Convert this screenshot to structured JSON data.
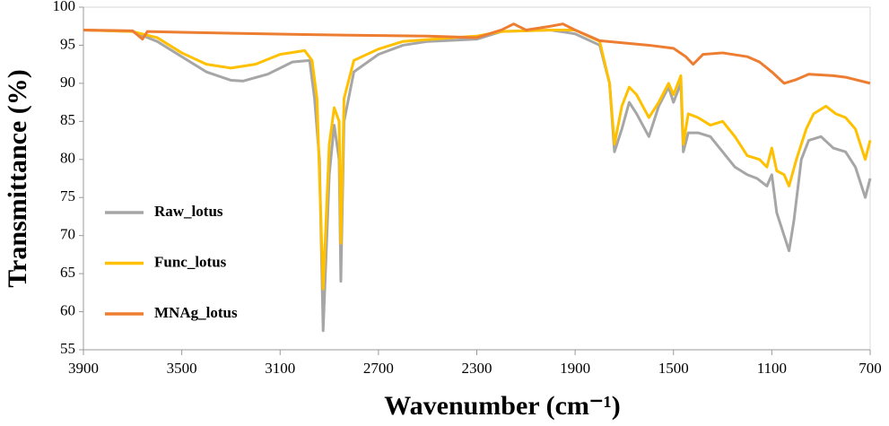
{
  "chart_data": {
    "type": "line",
    "x_label": "Wavenumber (cm⁻¹)",
    "y_label": "Transmittance (%)",
    "xlim": [
      3900,
      700
    ],
    "xticks": [
      3900,
      3500,
      3100,
      2700,
      2300,
      1900,
      1500,
      1100,
      700
    ],
    "ylim": [
      55,
      100
    ],
    "yticks": [
      55,
      60,
      65,
      70,
      75,
      80,
      85,
      90,
      95,
      100
    ],
    "legend": "left",
    "series": [
      {
        "name": "Raw_lotus",
        "color": "#a6a6a6",
        "x": [
          3900,
          3700,
          3600,
          3500,
          3400,
          3300,
          3250,
          3150,
          3050,
          2980,
          2960,
          2940,
          2925,
          2900,
          2880,
          2860,
          2853,
          2840,
          2800,
          2700,
          2600,
          2500,
          2300,
          2200,
          2000,
          1900,
          1800,
          1760,
          1740,
          1710,
          1680,
          1650,
          1600,
          1560,
          1520,
          1500,
          1470,
          1460,
          1440,
          1400,
          1350,
          1300,
          1250,
          1200,
          1160,
          1120,
          1100,
          1080,
          1050,
          1030,
          1010,
          980,
          950,
          900,
          850,
          800,
          760,
          720,
          700
        ],
        "values": [
          97,
          96.8,
          95.5,
          93.5,
          91.5,
          90.4,
          90.3,
          91.2,
          92.8,
          93,
          88,
          80,
          57.5,
          78,
          84.5,
          80,
          64,
          85,
          91.5,
          93.8,
          95,
          95.5,
          95.8,
          96.8,
          97,
          96.5,
          95,
          90,
          81,
          84,
          87.5,
          86,
          83,
          87,
          89.5,
          87.5,
          90,
          81,
          83.5,
          83.5,
          83,
          81,
          79,
          78,
          77.5,
          76.5,
          78,
          73,
          70,
          68,
          72,
          80,
          82.5,
          83,
          81.5,
          81,
          79,
          75,
          77.5
        ]
      },
      {
        "name": "Func_lotus",
        "color": "#ffc000",
        "x": [
          3900,
          3700,
          3600,
          3500,
          3400,
          3300,
          3200,
          3100,
          3000,
          2970,
          2950,
          2925,
          2900,
          2880,
          2860,
          2853,
          2840,
          2800,
          2700,
          2600,
          2400,
          2300,
          2200,
          2000,
          1900,
          1800,
          1760,
          1740,
          1710,
          1680,
          1650,
          1600,
          1560,
          1520,
          1500,
          1470,
          1460,
          1440,
          1400,
          1350,
          1300,
          1250,
          1200,
          1150,
          1120,
          1100,
          1080,
          1050,
          1030,
          1000,
          960,
          930,
          880,
          840,
          800,
          760,
          720,
          700
        ],
        "values": [
          97,
          96.8,
          96,
          94,
          92.5,
          92,
          92.5,
          93.8,
          94.3,
          93,
          88,
          63,
          82,
          86.8,
          85,
          69,
          88,
          93,
          94.5,
          95.5,
          96,
          96.2,
          96.8,
          97,
          97,
          95.5,
          90,
          82,
          87,
          89.5,
          88.5,
          85.5,
          87.5,
          90,
          88.5,
          91,
          82,
          86,
          85.5,
          84.5,
          85,
          83,
          80.5,
          80,
          79,
          81.5,
          78.5,
          78,
          76.5,
          80,
          84,
          86,
          87,
          86,
          85.5,
          84,
          80,
          82.5
        ]
      },
      {
        "name": "MNAg_lotus",
        "color": "#ed7d31",
        "x": [
          3900,
          3700,
          3660,
          3640,
          3500,
          3000,
          2500,
          2300,
          2200,
          2150,
          2100,
          2000,
          1950,
          1900,
          1800,
          1600,
          1500,
          1450,
          1420,
          1380,
          1300,
          1200,
          1150,
          1100,
          1050,
          1000,
          950,
          850,
          800,
          700
        ],
        "values": [
          97,
          96.9,
          95.8,
          96.8,
          96.7,
          96.4,
          96.2,
          96,
          97,
          97.8,
          97,
          97.5,
          97.8,
          97,
          95.6,
          95,
          94.6,
          93.5,
          92.5,
          93.8,
          94,
          93.5,
          92.8,
          91.5,
          90,
          90.5,
          91.2,
          91,
          90.8,
          90
        ]
      }
    ]
  }
}
